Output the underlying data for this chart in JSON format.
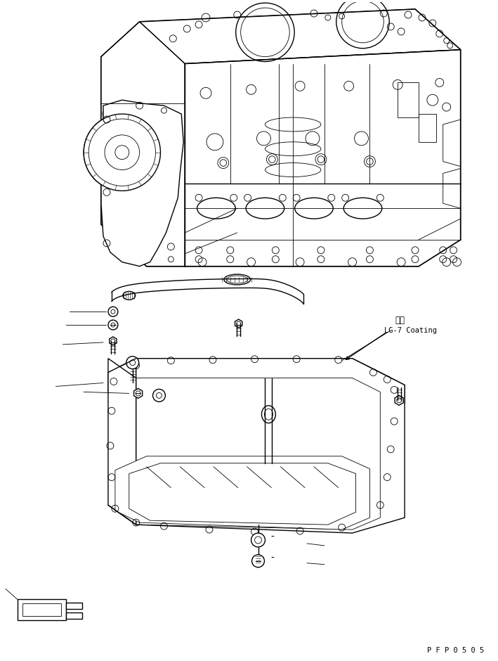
{
  "bg_color": "#ffffff",
  "line_color": "#000000",
  "text_pfp": "P F P 0 5 0 5",
  "text_coating_jp": "塗布",
  "text_coating_en": "LG-7 Coating",
  "fig_width": 7.09,
  "fig_height": 9.4,
  "dpi": 100,
  "lw_main": 1.0,
  "lw_thin": 0.6,
  "lw_thick": 1.4
}
